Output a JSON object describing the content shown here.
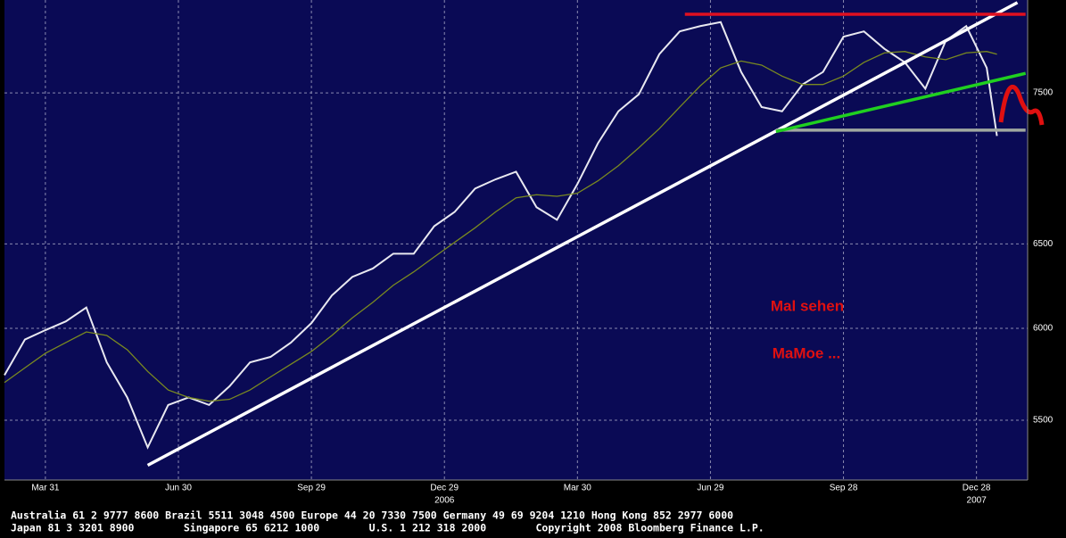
{
  "chart_data": {
    "type": "line",
    "x": [
      -4,
      -2,
      0,
      2,
      4,
      6,
      8,
      10,
      12,
      14,
      16,
      18,
      20,
      22,
      24,
      26,
      28,
      30,
      32,
      34,
      36,
      38,
      40,
      42,
      44,
      46,
      48,
      50,
      52,
      54,
      56,
      58,
      60,
      62,
      64,
      66,
      68,
      70,
      72,
      74,
      76,
      78,
      80,
      82,
      84,
      86,
      88,
      90,
      92,
      93
    ],
    "series": [
      {
        "color": "#e8e8f0",
        "values": [
          5740,
          5937,
          5990,
          6040,
          6120,
          5810,
          5620,
          5360,
          5580,
          5620,
          5580,
          5680,
          5810,
          5840,
          5920,
          6030,
          6190,
          6300,
          6350,
          6440,
          6440,
          6610,
          6700,
          6850,
          6910,
          6960,
          6730,
          6650,
          6880,
          7150,
          7370,
          7490,
          7780,
          7950,
          7990,
          8020,
          7650,
          7400,
          7370,
          7560,
          7650,
          7910,
          7950,
          7820,
          7720,
          7530,
          7880,
          7990,
          7680,
          7200
        ]
      },
      {
        "color": "#7a8a20",
        "values": [
          5700,
          5780,
          5860,
          5920,
          5980,
          5960,
          5880,
          5760,
          5660,
          5620,
          5600,
          5610,
          5660,
          5730,
          5800,
          5870,
          5960,
          6060,
          6150,
          6250,
          6330,
          6420,
          6510,
          6600,
          6700,
          6790,
          6810,
          6800,
          6820,
          6900,
          7000,
          7120,
          7250,
          7400,
          7550,
          7680,
          7730,
          7700,
          7620,
          7560,
          7560,
          7620,
          7720,
          7790,
          7800,
          7760,
          7740,
          7790,
          7800,
          7780
        ]
      }
    ],
    "trendlines": [
      {
        "color": "#ffffff",
        "x": [
          10,
          95
        ],
        "y": [
          5270,
          8170
        ]
      },
      {
        "color": "#e01020",
        "x": [
          62.5,
          95.8
        ],
        "y": [
          8080,
          8080
        ]
      },
      {
        "color": "#a0a8a0",
        "x": [
          71.4,
          95.8
        ],
        "y": [
          7240,
          7240
        ]
      },
      {
        "color": "#20d020",
        "x": [
          71.4,
          95.8
        ],
        "y": [
          7230,
          7640
        ]
      }
    ],
    "xlim": [
      -4,
      96
    ],
    "xticks": [
      {
        "value": 0,
        "label": "Mar 31"
      },
      {
        "value": 13,
        "label": "Jun 30"
      },
      {
        "value": 26,
        "label": "Sep 29"
      },
      {
        "value": 39,
        "label": "Dec 29"
      },
      {
        "value": 52,
        "label": "Mar 30"
      },
      {
        "value": 65,
        "label": "Jun 29"
      },
      {
        "value": 78,
        "label": "Sep 28"
      },
      {
        "value": 91,
        "label": "Dec 28"
      }
    ],
    "year_labels": [
      {
        "value": 39,
        "label": "2006"
      },
      {
        "value": 91,
        "label": "2007"
      }
    ],
    "ylim": [
      5197,
      8190
    ],
    "yticks": [
      5500,
      6000,
      6500,
      7500
    ],
    "log_scale": true,
    "grid": true,
    "annotations": [
      "Mal sehen",
      "MaMoe ..."
    ],
    "footer": [
      "Australia 61 2 9777 8600 Brazil 5511 3048 4500 Europe 44 20 7330 7500 Germany 49 69 9204 1210 Hong Kong 852 2977 6000",
      "Japan 81 3 3201 8900        Singapore 65 6212 1000        U.S. 1 212 318 2000        Copyright 2008 Bloomberg Finance L.P."
    ]
  }
}
